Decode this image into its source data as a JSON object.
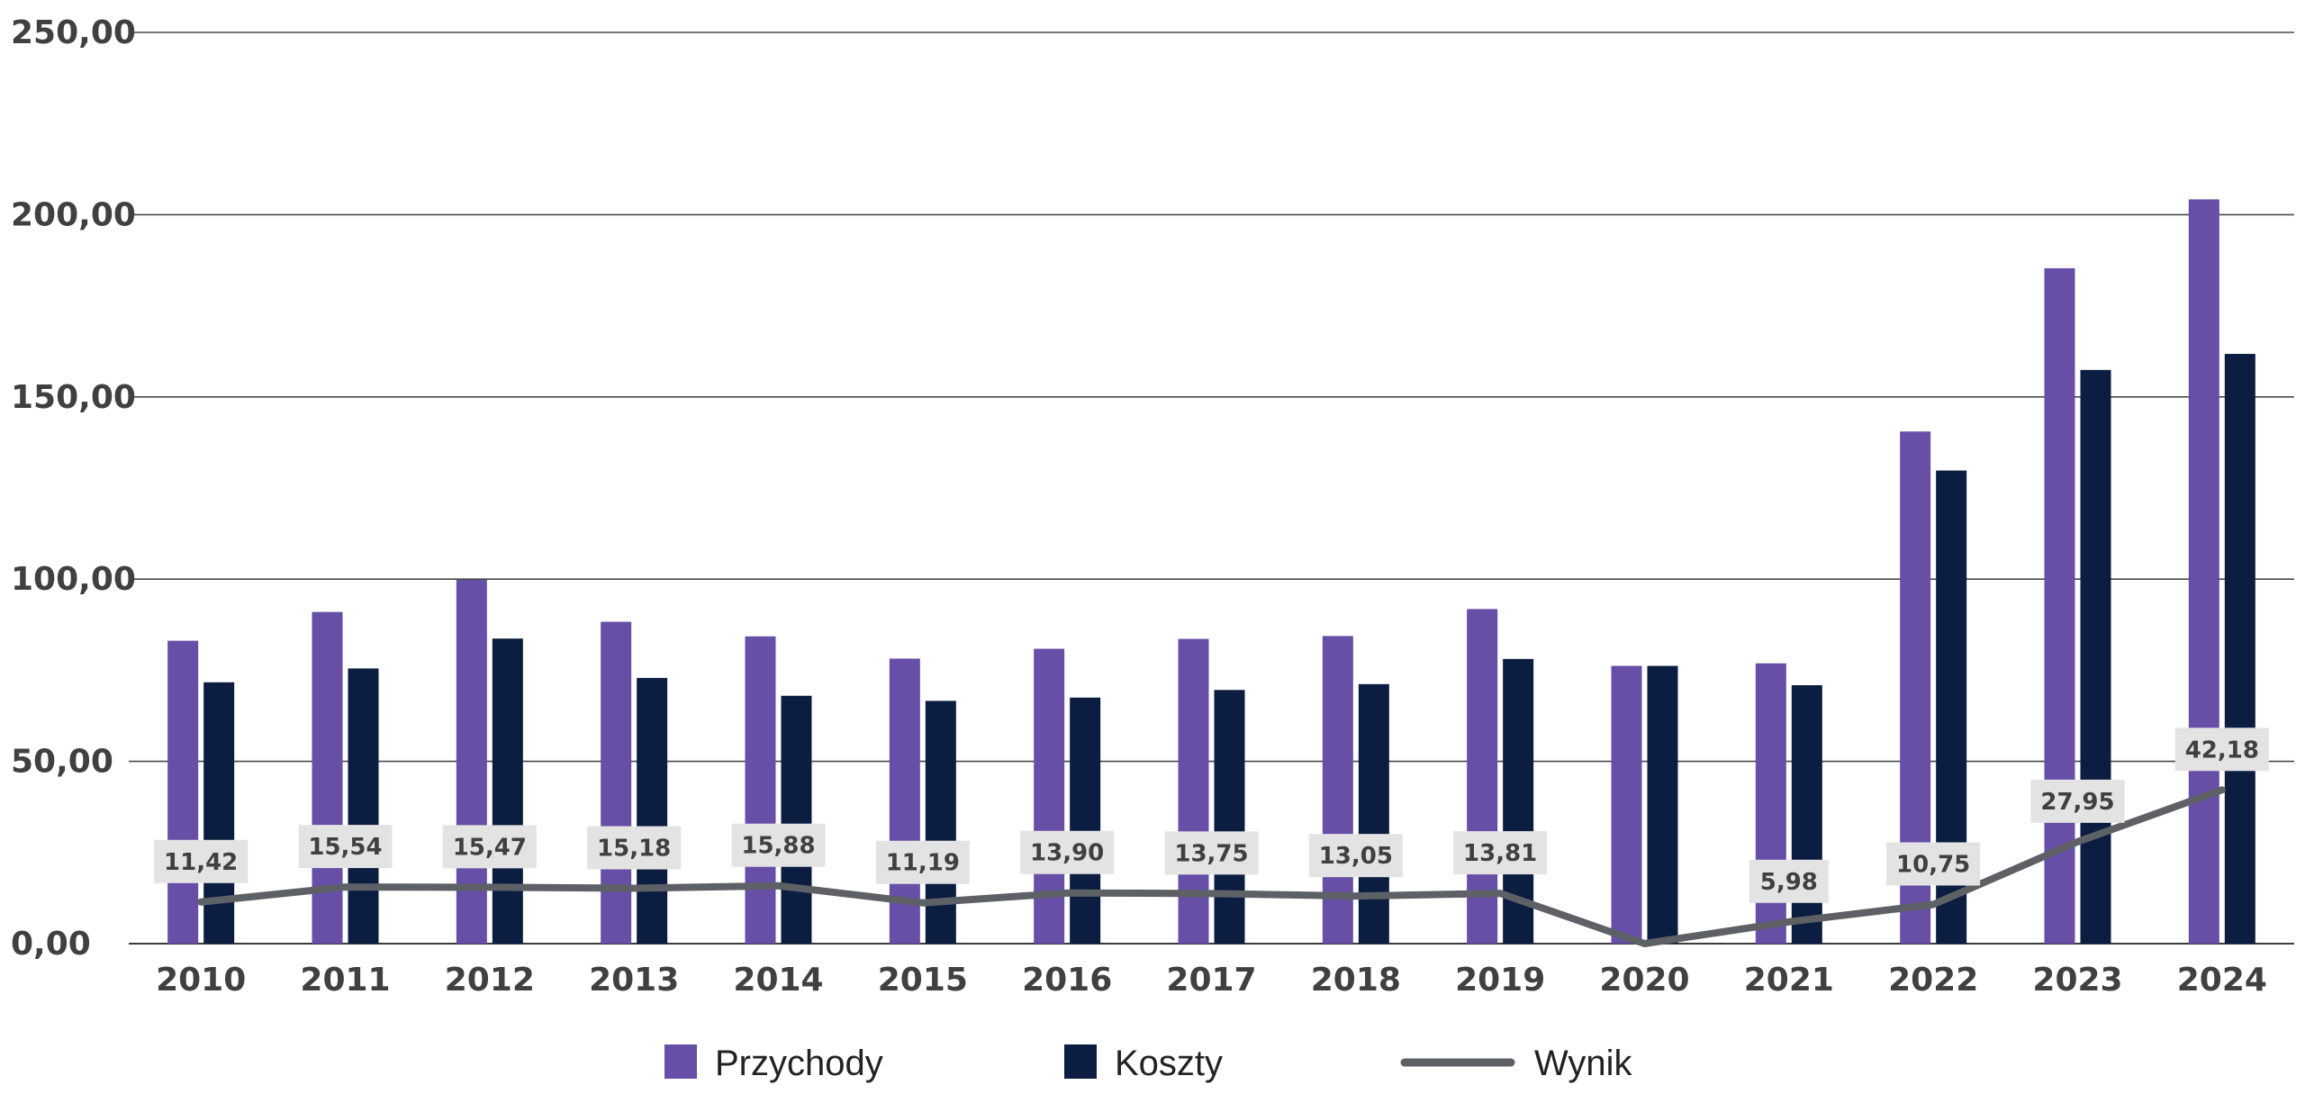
{
  "chart_data": {
    "type": "bar",
    "categories": [
      "2010",
      "2011",
      "2012",
      "2013",
      "2014",
      "2015",
      "2016",
      "2017",
      "2018",
      "2019",
      "2020",
      "2021",
      "2022",
      "2023",
      "2024"
    ],
    "series": [
      {
        "name": "Przychody",
        "type": "bar",
        "color": "#674ea7",
        "values": [
          83.1,
          91.0,
          99.8,
          88.3,
          84.3,
          78.2,
          80.9,
          83.6,
          84.4,
          91.8,
          76.2,
          76.9,
          140.5,
          185.3,
          204.2
        ]
      },
      {
        "name": "Koszty",
        "type": "bar",
        "color": "#0b1d40",
        "values": [
          71.7,
          75.5,
          83.7,
          72.9,
          68.0,
          66.6,
          67.5,
          69.6,
          71.2,
          78.1,
          76.2,
          70.9,
          129.8,
          157.4,
          161.8
        ]
      },
      {
        "name": "Wynik",
        "type": "line",
        "color": "#5d6166",
        "values": [
          11.42,
          15.54,
          15.47,
          15.18,
          15.88,
          11.19,
          13.9,
          13.75,
          13.05,
          13.81,
          0.0,
          5.98,
          10.75,
          27.95,
          42.18
        ],
        "data_labels": [
          "11,42",
          "15,54",
          "15,47",
          "15,18",
          "15,88",
          "11,19",
          "13,90",
          "13,75",
          "13,05",
          "13,81",
          "",
          "5,98",
          "10,75",
          "27,95",
          "42,18"
        ]
      }
    ],
    "ylim": [
      0,
      250
    ],
    "yticks": [
      0,
      50,
      100,
      150,
      200,
      250
    ],
    "ytick_labels": [
      "0,00",
      "50,00",
      "100,00",
      "150,00",
      "200,00",
      "250,00"
    ],
    "grid": true,
    "legend": {
      "position": "bottom-center",
      "entries": [
        "Przychody",
        "Koszty",
        "Wynik"
      ]
    }
  }
}
